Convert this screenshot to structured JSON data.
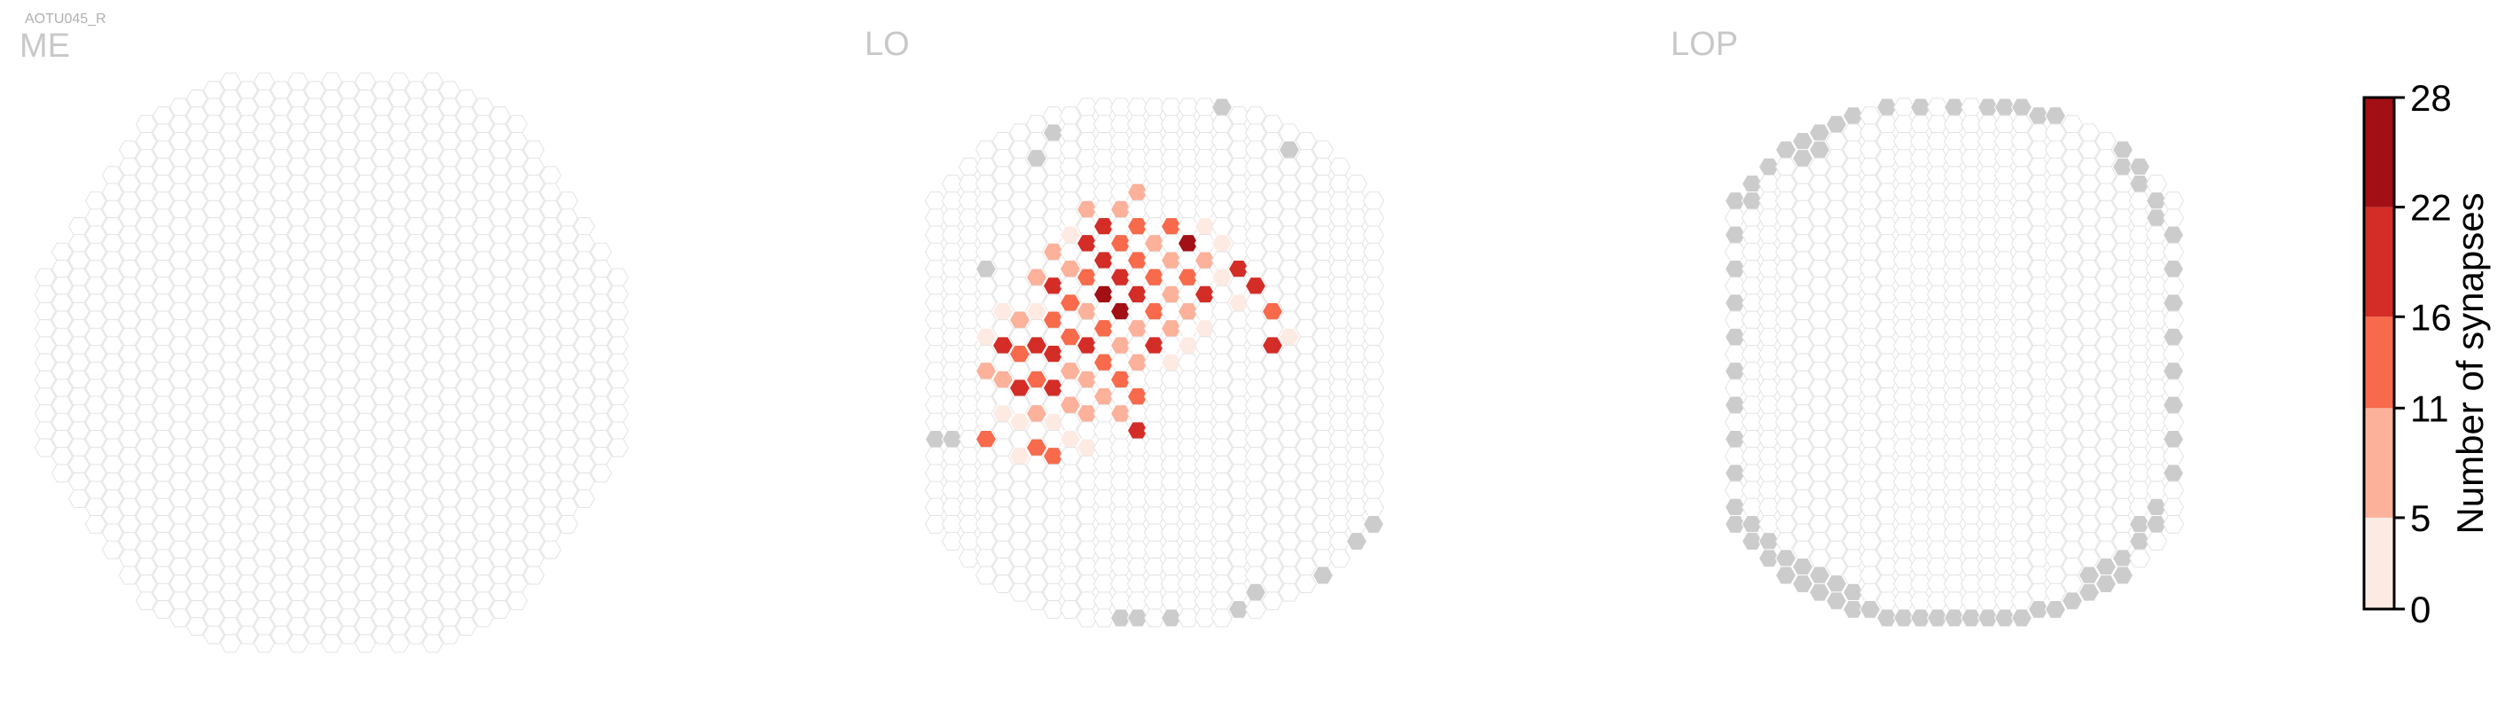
{
  "chart_data": {
    "type": "heatmap",
    "figure_label": "AOTU045_R",
    "panels": [
      {
        "name": "ME",
        "columns": [
          11,
          14,
          17,
          20,
          23,
          26,
          29,
          30,
          31,
          32,
          33,
          34,
          33,
          34,
          33,
          34,
          33,
          34,
          33,
          34,
          33,
          34,
          33,
          34,
          33,
          32,
          31,
          30,
          29,
          26,
          23,
          20,
          17,
          14,
          11
        ],
        "highlight_cells": [],
        "gray_cells": []
      },
      {
        "name": "LO",
        "columns": [
          20,
          22,
          24,
          26,
          27,
          28,
          29,
          30,
          30,
          31,
          31,
          31,
          31,
          31,
          31,
          31,
          31,
          31,
          30,
          30,
          29,
          28,
          27,
          26,
          24,
          22,
          20
        ],
        "highlight_cells": [
          {
            "col": 3,
            "row": 11,
            "value": 4
          },
          {
            "col": 3,
            "row": 13,
            "value": 9
          },
          {
            "col": 3,
            "row": 17,
            "value": 15
          },
          {
            "col": 4,
            "row": 10,
            "value": 4
          },
          {
            "col": 4,
            "row": 12,
            "value": 19
          },
          {
            "col": 4,
            "row": 14,
            "value": 8
          },
          {
            "col": 4,
            "row": 16,
            "value": 3
          },
          {
            "col": 5,
            "row": 11,
            "value": 9
          },
          {
            "col": 5,
            "row": 13,
            "value": 12
          },
          {
            "col": 5,
            "row": 15,
            "value": 21
          },
          {
            "col": 5,
            "row": 17,
            "value": 3
          },
          {
            "col": 5,
            "row": 19,
            "value": 4
          },
          {
            "col": 6,
            "row": 9,
            "value": 8
          },
          {
            "col": 6,
            "row": 11,
            "value": 2
          },
          {
            "col": 6,
            "row": 13,
            "value": 17
          },
          {
            "col": 6,
            "row": 15,
            "value": 13
          },
          {
            "col": 6,
            "row": 17,
            "value": 10
          },
          {
            "col": 6,
            "row": 19,
            "value": 14
          },
          {
            "col": 7,
            "row": 8,
            "value": 8
          },
          {
            "col": 7,
            "row": 10,
            "value": 19
          },
          {
            "col": 7,
            "row": 12,
            "value": 14
          },
          {
            "col": 7,
            "row": 14,
            "value": 20
          },
          {
            "col": 7,
            "row": 16,
            "value": 18
          },
          {
            "col": 7,
            "row": 18,
            "value": 3
          },
          {
            "col": 7,
            "row": 20,
            "value": 12
          },
          {
            "col": 8,
            "row": 7,
            "value": 4
          },
          {
            "col": 8,
            "row": 9,
            "value": 10
          },
          {
            "col": 8,
            "row": 11,
            "value": 15
          },
          {
            "col": 8,
            "row": 13,
            "value": 12
          },
          {
            "col": 8,
            "row": 15,
            "value": 9
          },
          {
            "col": 8,
            "row": 17,
            "value": 5
          },
          {
            "col": 8,
            "row": 19,
            "value": 4
          },
          {
            "col": 9,
            "row": 6,
            "value": 6
          },
          {
            "col": 9,
            "row": 8,
            "value": 18
          },
          {
            "col": 9,
            "row": 10,
            "value": 13
          },
          {
            "col": 9,
            "row": 12,
            "value": 10
          },
          {
            "col": 9,
            "row": 14,
            "value": 18
          },
          {
            "col": 9,
            "row": 16,
            "value": 7
          },
          {
            "col": 9,
            "row": 18,
            "value": 9
          },
          {
            "col": 9,
            "row": 20,
            "value": 3
          },
          {
            "col": 10,
            "row": 7,
            "value": 16
          },
          {
            "col": 10,
            "row": 9,
            "value": 17
          },
          {
            "col": 10,
            "row": 11,
            "value": 27
          },
          {
            "col": 10,
            "row": 13,
            "value": 15
          },
          {
            "col": 10,
            "row": 15,
            "value": 11
          },
          {
            "col": 10,
            "row": 17,
            "value": 6
          },
          {
            "col": 11,
            "row": 6,
            "value": 5
          },
          {
            "col": 11,
            "row": 8,
            "value": 13
          },
          {
            "col": 11,
            "row": 10,
            "value": 18
          },
          {
            "col": 11,
            "row": 12,
            "value": 26
          },
          {
            "col": 11,
            "row": 14,
            "value": 9
          },
          {
            "col": 11,
            "row": 16,
            "value": 12
          },
          {
            "col": 11,
            "row": 18,
            "value": 5
          },
          {
            "col": 12,
            "row": 5,
            "value": 10
          },
          {
            "col": 12,
            "row": 7,
            "value": 13
          },
          {
            "col": 12,
            "row": 9,
            "value": 12
          },
          {
            "col": 12,
            "row": 11,
            "value": 20
          },
          {
            "col": 12,
            "row": 13,
            "value": 8
          },
          {
            "col": 12,
            "row": 15,
            "value": 9
          },
          {
            "col": 12,
            "row": 17,
            "value": 15
          },
          {
            "col": 12,
            "row": 19,
            "value": 21
          },
          {
            "col": 13,
            "row": 8,
            "value": 6
          },
          {
            "col": 13,
            "row": 10,
            "value": 11
          },
          {
            "col": 13,
            "row": 12,
            "value": 14
          },
          {
            "col": 13,
            "row": 14,
            "value": 19
          },
          {
            "col": 14,
            "row": 7,
            "value": 13
          },
          {
            "col": 14,
            "row": 9,
            "value": 9
          },
          {
            "col": 14,
            "row": 11,
            "value": 6
          },
          {
            "col": 14,
            "row": 13,
            "value": 8
          },
          {
            "col": 14,
            "row": 15,
            "value": 4
          },
          {
            "col": 15,
            "row": 8,
            "value": 22
          },
          {
            "col": 15,
            "row": 10,
            "value": 12
          },
          {
            "col": 15,
            "row": 12,
            "value": 5
          },
          {
            "col": 15,
            "row": 14,
            "value": 3
          },
          {
            "col": 16,
            "row": 7,
            "value": 3
          },
          {
            "col": 16,
            "row": 9,
            "value": 8
          },
          {
            "col": 16,
            "row": 11,
            "value": 18
          },
          {
            "col": 16,
            "row": 13,
            "value": 4
          },
          {
            "col": 17,
            "row": 8,
            "value": 4
          },
          {
            "col": 17,
            "row": 10,
            "value": 3
          },
          {
            "col": 18,
            "row": 9,
            "value": 21
          },
          {
            "col": 18,
            "row": 11,
            "value": 4
          },
          {
            "col": 19,
            "row": 10,
            "value": 19
          },
          {
            "col": 20,
            "row": 11,
            "value": 14
          },
          {
            "col": 20,
            "row": 13,
            "value": 17
          },
          {
            "col": 21,
            "row": 12,
            "value": 4
          }
        ],
        "gray_cells": [
          {
            "col": 0,
            "row": 14
          },
          {
            "col": 1,
            "row": 15
          },
          {
            "col": 1,
            "row": 22
          },
          {
            "col": 3,
            "row": 7
          },
          {
            "col": 6,
            "row": 2
          },
          {
            "col": 7,
            "row": 1
          },
          {
            "col": 11,
            "row": 30
          },
          {
            "col": 12,
            "row": 30
          },
          {
            "col": 13,
            "row": 31
          },
          {
            "col": 14,
            "row": 30
          },
          {
            "col": 15,
            "row": 31
          },
          {
            "col": 17,
            "row": 0
          },
          {
            "col": 18,
            "row": 29
          },
          {
            "col": 19,
            "row": 28
          },
          {
            "col": 21,
            "row": 1
          },
          {
            "col": 23,
            "row": 25
          },
          {
            "col": 25,
            "row": 21
          },
          {
            "col": 26,
            "row": 19
          }
        ]
      },
      {
        "name": "LOP",
        "columns": [
          20,
          22,
          24,
          26,
          27,
          28,
          29,
          30,
          30,
          31,
          31,
          31,
          31,
          31,
          31,
          31,
          31,
          31,
          30,
          30,
          29,
          28,
          27,
          26,
          24,
          22,
          20
        ],
        "highlight_cells": [],
        "gray_cells": [
          {
            "col": 0,
            "row": 0
          },
          {
            "col": 0,
            "row": 2
          },
          {
            "col": 0,
            "row": 4
          },
          {
            "col": 0,
            "row": 6
          },
          {
            "col": 0,
            "row": 8
          },
          {
            "col": 0,
            "row": 10
          },
          {
            "col": 0,
            "row": 12
          },
          {
            "col": 0,
            "row": 14
          },
          {
            "col": 0,
            "row": 16
          },
          {
            "col": 0,
            "row": 18
          },
          {
            "col": 0,
            "row": 19
          },
          {
            "col": 1,
            "row": 0
          },
          {
            "col": 1,
            "row": 1
          },
          {
            "col": 1,
            "row": 20
          },
          {
            "col": 1,
            "row": 21
          },
          {
            "col": 2,
            "row": 0
          },
          {
            "col": 2,
            "row": 22
          },
          {
            "col": 2,
            "row": 23
          },
          {
            "col": 3,
            "row": 0
          },
          {
            "col": 3,
            "row": 24
          },
          {
            "col": 3,
            "row": 25
          },
          {
            "col": 4,
            "row": 0
          },
          {
            "col": 4,
            "row": 1
          },
          {
            "col": 4,
            "row": 25
          },
          {
            "col": 4,
            "row": 26
          },
          {
            "col": 5,
            "row": 0
          },
          {
            "col": 5,
            "row": 1
          },
          {
            "col": 5,
            "row": 26
          },
          {
            "col": 5,
            "row": 27
          },
          {
            "col": 6,
            "row": 0
          },
          {
            "col": 6,
            "row": 27
          },
          {
            "col": 6,
            "row": 28
          },
          {
            "col": 7,
            "row": 0
          },
          {
            "col": 7,
            "row": 28
          },
          {
            "col": 7,
            "row": 29
          },
          {
            "col": 8,
            "row": 29
          },
          {
            "col": 9,
            "row": 0
          },
          {
            "col": 9,
            "row": 30
          },
          {
            "col": 10,
            "row": 30
          },
          {
            "col": 11,
            "row": 0
          },
          {
            "col": 11,
            "row": 30
          },
          {
            "col": 12,
            "row": 30
          },
          {
            "col": 13,
            "row": 0
          },
          {
            "col": 13,
            "row": 30
          },
          {
            "col": 14,
            "row": 30
          },
          {
            "col": 15,
            "row": 0
          },
          {
            "col": 15,
            "row": 30
          },
          {
            "col": 16,
            "row": 0
          },
          {
            "col": 16,
            "row": 30
          },
          {
            "col": 17,
            "row": 0
          },
          {
            "col": 17,
            "row": 30
          },
          {
            "col": 18,
            "row": 0
          },
          {
            "col": 18,
            "row": 29
          },
          {
            "col": 19,
            "row": 0
          },
          {
            "col": 19,
            "row": 29
          },
          {
            "col": 20,
            "row": 28
          },
          {
            "col": 21,
            "row": 26
          },
          {
            "col": 21,
            "row": 27
          },
          {
            "col": 22,
            "row": 25
          },
          {
            "col": 22,
            "row": 26
          },
          {
            "col": 23,
            "row": 0
          },
          {
            "col": 23,
            "row": 1
          },
          {
            "col": 23,
            "row": 24
          },
          {
            "col": 23,
            "row": 25
          },
          {
            "col": 24,
            "row": 0
          },
          {
            "col": 24,
            "row": 1
          },
          {
            "col": 24,
            "row": 21
          },
          {
            "col": 24,
            "row": 22
          },
          {
            "col": 25,
            "row": 1
          },
          {
            "col": 25,
            "row": 2
          },
          {
            "col": 25,
            "row": 19
          },
          {
            "col": 25,
            "row": 20
          },
          {
            "col": 26,
            "row": 2
          },
          {
            "col": 26,
            "row": 4
          },
          {
            "col": 26,
            "row": 6
          },
          {
            "col": 26,
            "row": 8
          },
          {
            "col": 26,
            "row": 10
          },
          {
            "col": 26,
            "row": 12
          },
          {
            "col": 26,
            "row": 14
          },
          {
            "col": 26,
            "row": 16
          }
        ]
      }
    ],
    "colorbar": {
      "label": "Number of synapses",
      "ticks": [
        0,
        5,
        11,
        16,
        22,
        28
      ],
      "tick_labels": [
        "0",
        "5",
        "11",
        "16",
        "22",
        "28"
      ],
      "colors": [
        "#fdebe3",
        "#fbb19a",
        "#f76a4b",
        "#d42d27",
        "#a20f14"
      ]
    },
    "style": {
      "outline_color": "#e3e3e3",
      "gray_fill": "#cccccc",
      "title_color": "#c8c8c8",
      "label_color": "#b0b0b0",
      "text_color": "#000000"
    }
  }
}
